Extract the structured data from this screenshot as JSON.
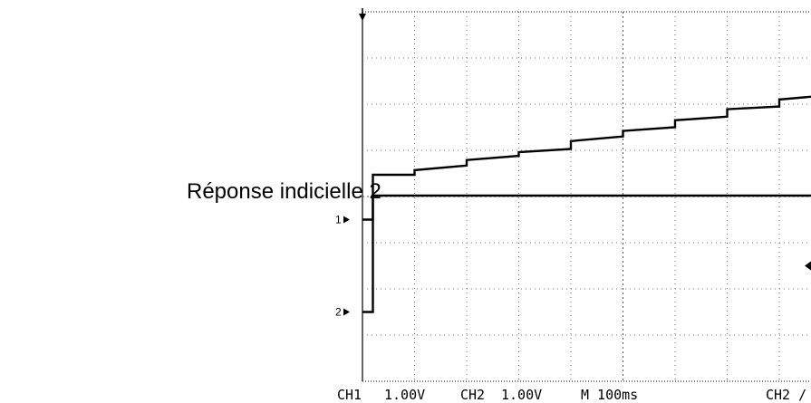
{
  "caption": "Réponse indicielle 2",
  "chart_data": {
    "type": "line",
    "title": "",
    "xlabel": "",
    "ylabel": "",
    "grid": true,
    "grid_divisions": {
      "x": 10,
      "y": 8
    },
    "x_units": "s",
    "xlim": [
      0.0,
      1.0
    ],
    "y_units": "V",
    "ylim": [
      -3.5,
      4.5
    ],
    "channel_markers": [
      {
        "label": "1",
        "level": 0.0
      },
      {
        "label": "2",
        "level": -2.0
      }
    ],
    "series": [
      {
        "name": "CH1",
        "x": [
          0.0,
          0.02,
          0.02,
          1.0
        ],
        "y": [
          0.0,
          0.0,
          0.52,
          0.52
        ]
      },
      {
        "name": "CH2",
        "x": [
          0.0,
          0.02,
          0.02,
          0.1,
          0.1,
          0.2,
          0.2,
          0.3,
          0.3,
          0.4,
          0.4,
          0.5,
          0.5,
          0.6,
          0.6,
          0.7,
          0.7,
          0.8,
          0.8,
          0.9,
          0.9,
          1.0
        ],
        "y": [
          -2.0,
          -2.0,
          0.97,
          0.97,
          1.07,
          1.17,
          1.29,
          1.38,
          1.46,
          1.53,
          1.7,
          1.8,
          1.92,
          2.0,
          2.15,
          2.23,
          2.39,
          2.45,
          2.6,
          2.7,
          2.83,
          2.9
        ]
      }
    ],
    "readouts": {
      "ch1": "CH1",
      "ch1_scale": "1.00V",
      "ch2": "CH2",
      "ch2_scale": "1.00V",
      "timebase": "M 100ms",
      "trigger": "CH2 /"
    }
  }
}
